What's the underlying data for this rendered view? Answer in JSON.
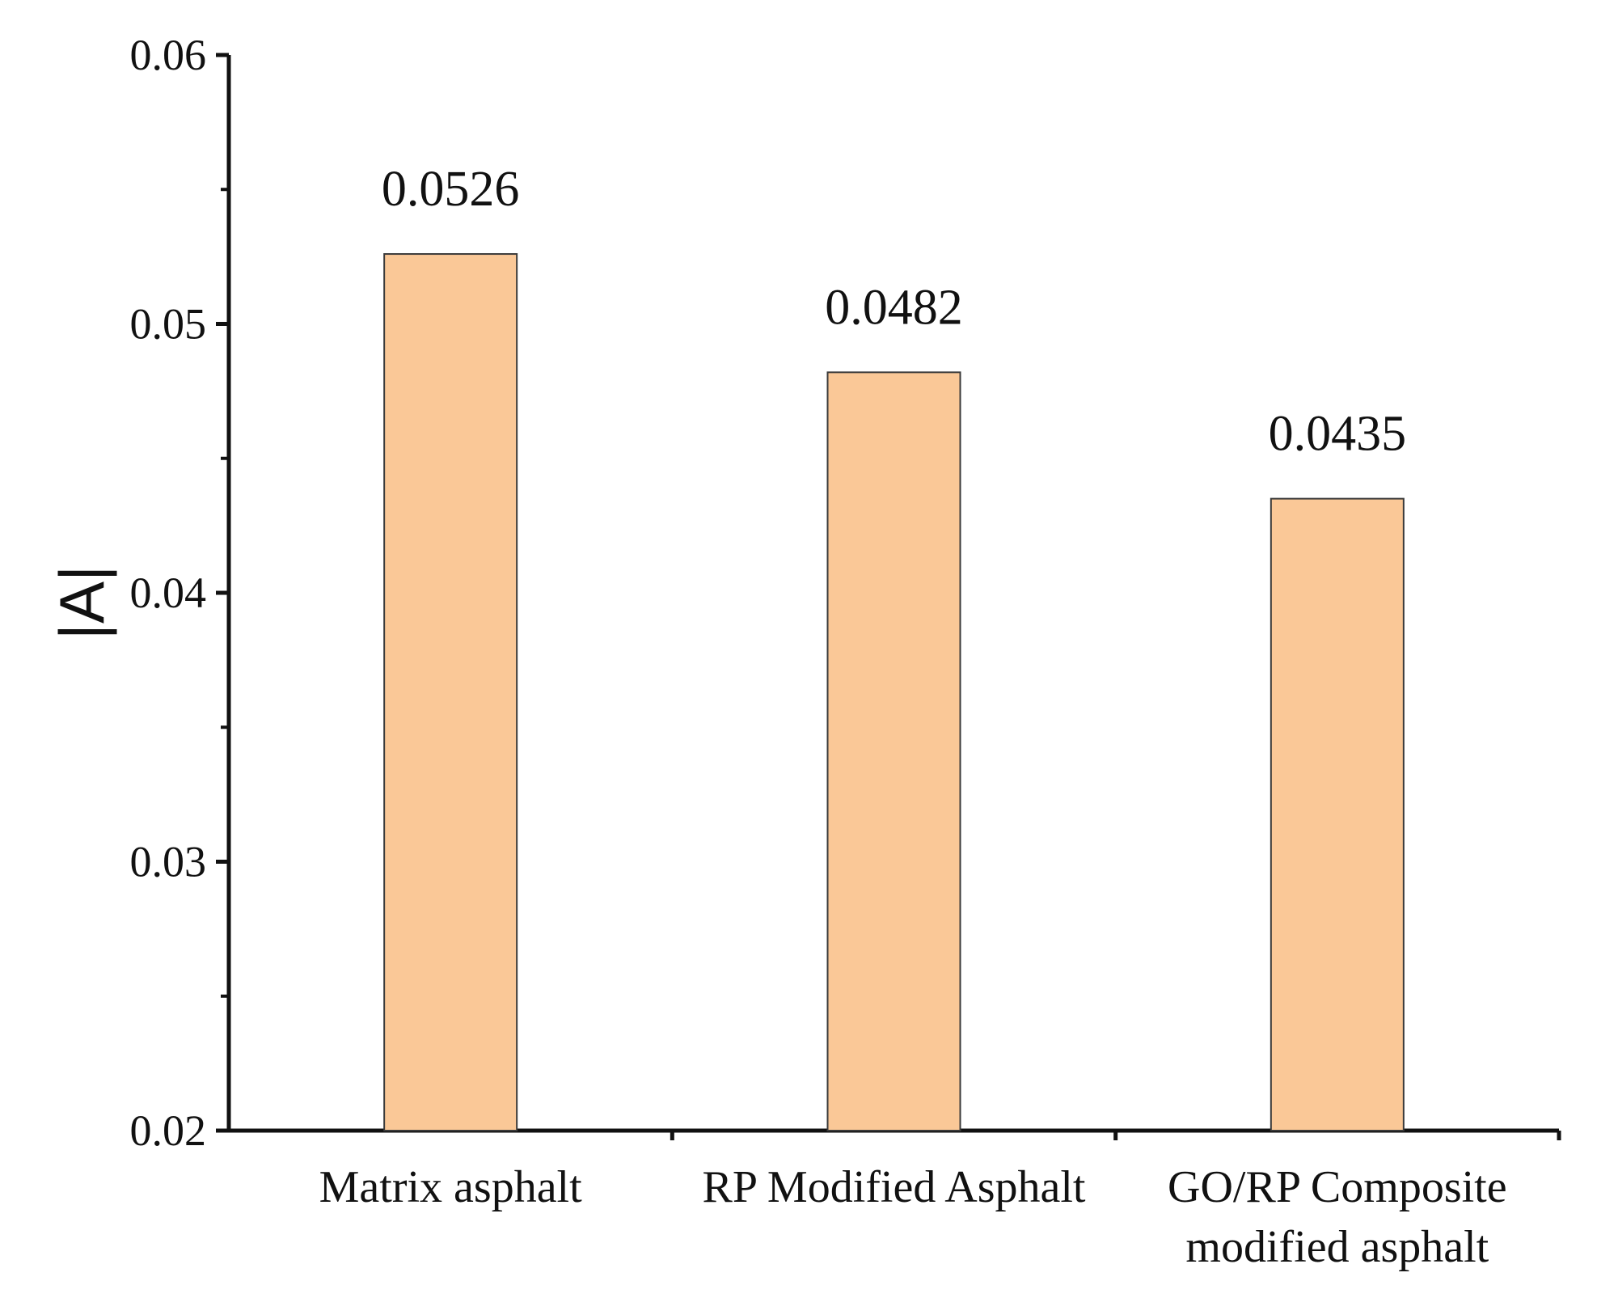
{
  "chart_data": {
    "type": "bar",
    "categories": [
      [
        "Matrix asphalt"
      ],
      [
        "RP Modified Asphalt"
      ],
      [
        "GO/RP Composite",
        "modified asphalt"
      ]
    ],
    "values": [
      0.0526,
      0.0482,
      0.0435
    ],
    "value_labels": [
      "0.0526",
      "0.0482",
      "0.0435"
    ],
    "title": "",
    "xlabel": "",
    "ylabel": "|A|",
    "ylim": [
      0.02,
      0.06
    ],
    "yticks": [
      0.02,
      0.03,
      0.04,
      0.05,
      0.06
    ],
    "ytick_labels": [
      "0.02",
      "0.03",
      "0.04",
      "0.05",
      "0.06"
    ],
    "yminor_ticks": [
      0.025,
      0.035,
      0.045,
      0.055
    ],
    "grid": false,
    "colors": {
      "bar_fill": "#FAC897",
      "bar_stroke": "#3a3a3a",
      "axis": "#111111"
    }
  }
}
